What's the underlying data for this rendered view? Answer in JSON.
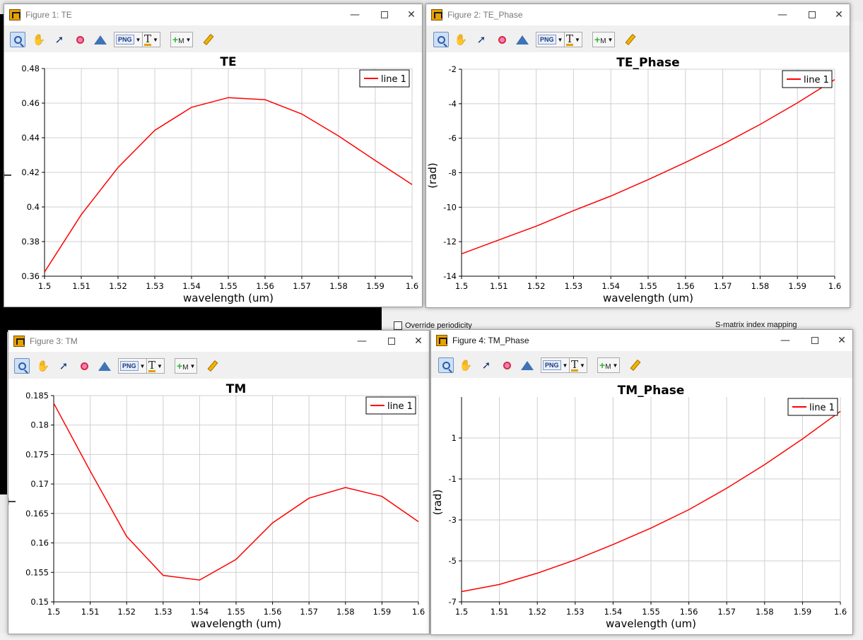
{
  "background": {
    "override_label": "Override periodicity",
    "smatrix_label": "S-matrix index mapping"
  },
  "windows": [
    {
      "id": "fig1",
      "title": "Figure 1: TE",
      "active": false,
      "chart_data": {
        "type": "line",
        "title": "TE",
        "xlabel": "wavelength (um)",
        "ylabel": "T",
        "xlim": [
          1.5,
          1.6
        ],
        "ylim": [
          0.36,
          0.48
        ],
        "xticks": [
          1.5,
          1.51,
          1.52,
          1.53,
          1.54,
          1.55,
          1.56,
          1.57,
          1.58,
          1.59,
          1.6
        ],
        "xtick_labels": [
          "1.5",
          "1.51",
          "1.52",
          "1.53",
          "1.54",
          "1.55",
          "1.56",
          "1.57",
          "1.58",
          "1.59",
          "1.6"
        ],
        "yticks": [
          0.36,
          0.38,
          0.4,
          0.42,
          0.44,
          0.46,
          0.48
        ],
        "ytick_labels": [
          "0.36",
          "0.38",
          "0.4",
          "0.42",
          "0.44",
          "0.46",
          "0.48"
        ],
        "grid": true,
        "legend": "top-right",
        "series": [
          {
            "name": "line 1",
            "color": "#ff0000",
            "x": [
              1.5,
              1.51,
              1.52,
              1.53,
              1.54,
              1.55,
              1.56,
              1.57,
              1.58,
              1.59,
              1.6
            ],
            "y": [
              0.3624,
              0.3956,
              0.4228,
              0.4443,
              0.4576,
              0.4632,
              0.462,
              0.4537,
              0.441,
              0.4268,
              0.413
            ]
          }
        ]
      }
    },
    {
      "id": "fig2",
      "title": "Figure 2: TE_Phase",
      "active": false,
      "chart_data": {
        "type": "line",
        "title": "TE_Phase",
        "xlabel": "wavelength (um)",
        "ylabel": "(rad)",
        "xlim": [
          1.5,
          1.6
        ],
        "ylim": [
          -14,
          -2
        ],
        "xticks": [
          1.5,
          1.51,
          1.52,
          1.53,
          1.54,
          1.55,
          1.56,
          1.57,
          1.58,
          1.59,
          1.6
        ],
        "xtick_labels": [
          "1.5",
          "1.51",
          "1.52",
          "1.53",
          "1.54",
          "1.55",
          "1.56",
          "1.57",
          "1.58",
          "1.59",
          "1.6"
        ],
        "yticks": [
          -14,
          -12,
          -10,
          -8,
          -6,
          -4,
          -2
        ],
        "ytick_labels": [
          "-14",
          "-12",
          "-10",
          "-8",
          "-6",
          "-4",
          "-2"
        ],
        "grid": true,
        "legend": "top-right",
        "series": [
          {
            "name": "line 1",
            "color": "#ff0000",
            "x": [
              1.5,
              1.51,
              1.52,
              1.53,
              1.54,
              1.55,
              1.56,
              1.57,
              1.58,
              1.59,
              1.6
            ],
            "y": [
              -12.7,
              -11.9,
              -11.1,
              -10.2,
              -9.35,
              -8.4,
              -7.4,
              -6.35,
              -5.2,
              -3.95,
              -2.6
            ]
          }
        ]
      }
    },
    {
      "id": "fig3",
      "title": "Figure 3: TM",
      "active": false,
      "chart_data": {
        "type": "line",
        "title": "TM",
        "xlabel": "wavelength (um)",
        "ylabel": "T",
        "xlim": [
          1.5,
          1.6
        ],
        "ylim": [
          0.15,
          0.185
        ],
        "xticks": [
          1.5,
          1.51,
          1.52,
          1.53,
          1.54,
          1.55,
          1.56,
          1.57,
          1.58,
          1.59,
          1.6
        ],
        "xtick_labels": [
          "1.5",
          "1.51",
          "1.52",
          "1.53",
          "1.54",
          "1.55",
          "1.56",
          "1.57",
          "1.58",
          "1.59",
          "1.6"
        ],
        "yticks": [
          0.15,
          0.155,
          0.16,
          0.165,
          0.17,
          0.175,
          0.18,
          0.185
        ],
        "ytick_labels": [
          "0.15",
          "0.155",
          "0.16",
          "0.165",
          "0.17",
          "0.175",
          "0.18",
          "0.185"
        ],
        "grid": true,
        "legend": "top-right",
        "series": [
          {
            "name": "line 1",
            "color": "#ff0000",
            "x": [
              1.5,
              1.51,
              1.52,
              1.53,
              1.54,
              1.55,
              1.56,
              1.57,
              1.58,
              1.59,
              1.6
            ],
            "y": [
              0.1837,
              0.1722,
              0.1611,
              0.1545,
              0.1537,
              0.1572,
              0.1634,
              0.1676,
              0.1694,
              0.1679,
              0.1636
            ]
          }
        ]
      }
    },
    {
      "id": "fig4",
      "title": "Figure 4: TM_Phase",
      "active": true,
      "chart_data": {
        "type": "line",
        "title": "TM_Phase",
        "xlabel": "wavelength (um)",
        "ylabel": "(rad)",
        "xlim": [
          1.5,
          1.6
        ],
        "ylim": [
          -7,
          3
        ],
        "xticks": [
          1.5,
          1.51,
          1.52,
          1.53,
          1.54,
          1.55,
          1.56,
          1.57,
          1.58,
          1.59,
          1.6
        ],
        "xtick_labels": [
          "1.5",
          "1.51",
          "1.52",
          "1.53",
          "1.54",
          "1.55",
          "1.56",
          "1.57",
          "1.58",
          "1.59",
          "1.6"
        ],
        "yticks": [
          -7,
          -5,
          -3,
          -1,
          1
        ],
        "ytick_labels": [
          "-7",
          "-5",
          "-3",
          "-1",
          "1"
        ],
        "grid": true,
        "legend": "top-right",
        "series": [
          {
            "name": "line 1",
            "color": "#ff0000",
            "x": [
              1.5,
              1.51,
              1.52,
              1.53,
              1.54,
              1.55,
              1.56,
              1.57,
              1.58,
              1.59,
              1.6
            ],
            "y": [
              -6.5,
              -6.15,
              -5.6,
              -4.95,
              -4.2,
              -3.4,
              -2.5,
              -1.45,
              -0.3,
              0.95,
              2.3
            ]
          }
        ]
      }
    }
  ]
}
